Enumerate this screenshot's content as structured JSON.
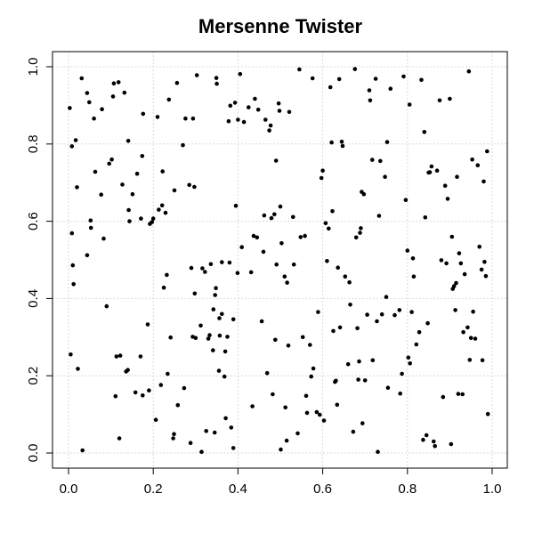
{
  "chart_data": {
    "type": "scatter",
    "title": "Mersenne Twister",
    "xlabel": "",
    "ylabel": "",
    "xlim": [
      0,
      1
    ],
    "ylim": [
      0,
      1
    ],
    "xticks": [
      "0.0",
      "0.2",
      "0.4",
      "0.6",
      "0.8",
      "1.0"
    ],
    "yticks": [
      "0.0",
      "0.2",
      "0.4",
      "0.6",
      "0.8",
      "1.0"
    ],
    "grid": true,
    "legend": "none",
    "series": [
      {
        "points": [
          [
            0.003,
            0.893
          ],
          [
            0.005,
            0.255
          ],
          [
            0.008,
            0.794
          ],
          [
            0.008,
            0.569
          ],
          [
            0.01,
            0.486
          ],
          [
            0.012,
            0.437
          ],
          [
            0.017,
            0.81
          ],
          [
            0.02,
            0.688
          ],
          [
            0.022,
            0.218
          ],
          [
            0.031,
            0.97
          ],
          [
            0.033,
            0.007
          ],
          [
            0.044,
            0.512
          ],
          [
            0.044,
            0.932
          ],
          [
            0.049,
            0.908
          ],
          [
            0.052,
            0.602
          ],
          [
            0.053,
            0.583
          ],
          [
            0.06,
            0.866
          ],
          [
            0.063,
            0.728
          ],
          [
            0.077,
            0.669
          ],
          [
            0.079,
            0.89
          ],
          [
            0.083,
            0.555
          ],
          [
            0.09,
            0.38
          ],
          [
            0.096,
            0.749
          ],
          [
            0.102,
            0.76
          ],
          [
            0.105,
            0.923
          ],
          [
            0.107,
            0.957
          ],
          [
            0.111,
            0.147
          ],
          [
            0.113,
            0.25
          ],
          [
            0.118,
            0.96
          ],
          [
            0.12,
            0.038
          ],
          [
            0.122,
            0.252
          ],
          [
            0.127,
            0.695
          ],
          [
            0.132,
            0.933
          ],
          [
            0.136,
            0.211
          ],
          [
            0.14,
            0.215
          ],
          [
            0.141,
            0.808
          ],
          [
            0.142,
            0.629
          ],
          [
            0.144,
            0.6
          ],
          [
            0.151,
            0.67
          ],
          [
            0.158,
            0.157
          ],
          [
            0.162,
            0.723
          ],
          [
            0.17,
            0.25
          ],
          [
            0.171,
            0.607
          ],
          [
            0.174,
            0.769
          ],
          [
            0.175,
            0.149
          ],
          [
            0.176,
            0.878
          ],
          [
            0.187,
            0.333
          ],
          [
            0.19,
            0.162
          ],
          [
            0.192,
            0.593
          ],
          [
            0.197,
            0.598
          ],
          [
            0.2,
            0.607
          ],
          [
            0.206,
            0.086
          ],
          [
            0.21,
            0.87
          ],
          [
            0.213,
            0.63
          ],
          [
            0.218,
            0.176
          ],
          [
            0.221,
            0.641
          ],
          [
            0.222,
            0.729
          ],
          [
            0.225,
            0.428
          ],
          [
            0.229,
            0.622
          ],
          [
            0.232,
            0.461
          ],
          [
            0.234,
            0.205
          ],
          [
            0.237,
            0.915
          ],
          [
            0.241,
            0.299
          ],
          [
            0.247,
            0.038
          ],
          [
            0.249,
            0.049
          ],
          [
            0.25,
            0.68
          ],
          [
            0.256,
            0.958
          ],
          [
            0.258,
            0.124
          ],
          [
            0.27,
            0.797
          ],
          [
            0.273,
            0.168
          ],
          [
            0.276,
            0.866
          ],
          [
            0.285,
            0.694
          ],
          [
            0.288,
            0.026
          ],
          [
            0.29,
            0.479
          ],
          [
            0.293,
            0.301
          ],
          [
            0.294,
            0.866
          ],
          [
            0.297,
            0.689
          ],
          [
            0.298,
            0.413
          ],
          [
            0.3,
            0.298
          ],
          [
            0.303,
            0.978
          ],
          [
            0.312,
            0.33
          ],
          [
            0.314,
            0.003
          ],
          [
            0.316,
            0.478
          ],
          [
            0.322,
            0.469
          ],
          [
            0.325,
            0.057
          ],
          [
            0.33,
            0.296
          ],
          [
            0.333,
            0.305
          ],
          [
            0.336,
            0.489
          ],
          [
            0.341,
            0.266
          ],
          [
            0.342,
            0.372
          ],
          [
            0.345,
            0.053
          ],
          [
            0.346,
            0.409
          ],
          [
            0.348,
            0.427
          ],
          [
            0.349,
            0.971
          ],
          [
            0.35,
            0.956
          ],
          [
            0.355,
            0.213
          ],
          [
            0.356,
            0.349
          ],
          [
            0.357,
            0.304
          ],
          [
            0.362,
            0.494
          ],
          [
            0.362,
            0.36
          ],
          [
            0.368,
            0.198
          ],
          [
            0.37,
            0.263
          ],
          [
            0.371,
            0.09
          ],
          [
            0.375,
            0.301
          ],
          [
            0.378,
            0.859
          ],
          [
            0.38,
            0.493
          ],
          [
            0.382,
            0.899
          ],
          [
            0.384,
            0.066
          ],
          [
            0.389,
            0.013
          ],
          [
            0.389,
            0.346
          ],
          [
            0.393,
            0.907
          ],
          [
            0.395,
            0.64
          ],
          [
            0.399,
            0.466
          ],
          [
            0.4,
            0.863
          ],
          [
            0.405,
            0.981
          ],
          [
            0.409,
            0.533
          ],
          [
            0.414,
            0.857
          ],
          [
            0.425,
            0.895
          ],
          [
            0.431,
            0.468
          ],
          [
            0.434,
            0.121
          ],
          [
            0.437,
            0.562
          ],
          [
            0.44,
            0.917
          ],
          [
            0.445,
            0.558
          ],
          [
            0.448,
            0.889
          ],
          [
            0.456,
            0.341
          ],
          [
            0.46,
            0.521
          ],
          [
            0.462,
            0.615
          ],
          [
            0.465,
            0.863
          ],
          [
            0.469,
            0.207
          ],
          [
            0.474,
            0.835
          ],
          [
            0.477,
            0.848
          ],
          [
            0.479,
            0.608
          ],
          [
            0.482,
            0.152
          ],
          [
            0.486,
            0.618
          ],
          [
            0.488,
            0.293
          ],
          [
            0.49,
            0.757
          ],
          [
            0.491,
            0.488
          ],
          [
            0.496,
            0.905
          ],
          [
            0.498,
            0.886
          ],
          [
            0.5,
            0.638
          ],
          [
            0.501,
            0.009
          ],
          [
            0.503,
            0.543
          ],
          [
            0.51,
            0.457
          ],
          [
            0.512,
            0.118
          ],
          [
            0.515,
            0.032
          ],
          [
            0.516,
            0.441
          ],
          [
            0.519,
            0.278
          ],
          [
            0.521,
            0.883
          ],
          [
            0.53,
            0.611
          ],
          [
            0.532,
            0.488
          ],
          [
            0.541,
            0.051
          ],
          [
            0.545,
            0.993
          ],
          [
            0.548,
            0.559
          ],
          [
            0.553,
            0.3
          ],
          [
            0.558,
            0.562
          ],
          [
            0.561,
            0.148
          ],
          [
            0.563,
            0.104
          ],
          [
            0.57,
            0.28
          ],
          [
            0.573,
            0.198
          ],
          [
            0.576,
            0.97
          ],
          [
            0.578,
            0.219
          ],
          [
            0.586,
            0.106
          ],
          [
            0.589,
            0.365
          ],
          [
            0.593,
            0.099
          ],
          [
            0.597,
            0.712
          ],
          [
            0.6,
            0.731
          ],
          [
            0.603,
            0.084
          ],
          [
            0.607,
            0.595
          ],
          [
            0.61,
            0.497
          ],
          [
            0.614,
            0.581
          ],
          [
            0.618,
            0.947
          ],
          [
            0.621,
            0.804
          ],
          [
            0.623,
            0.626
          ],
          [
            0.625,
            0.316
          ],
          [
            0.629,
            0.184
          ],
          [
            0.631,
            0.187
          ],
          [
            0.634,
            0.125
          ],
          [
            0.636,
            0.48
          ],
          [
            0.639,
            0.968
          ],
          [
            0.641,
            0.325
          ],
          [
            0.645,
            0.806
          ],
          [
            0.647,
            0.795
          ],
          [
            0.653,
            0.457
          ],
          [
            0.66,
            0.23
          ],
          [
            0.663,
            0.442
          ],
          [
            0.665,
            0.384
          ],
          [
            0.672,
            0.055
          ],
          [
            0.676,
            0.994
          ],
          [
            0.679,
            0.558
          ],
          [
            0.682,
            0.323
          ],
          [
            0.684,
            0.19
          ],
          [
            0.686,
            0.237
          ],
          [
            0.688,
            0.57
          ],
          [
            0.69,
            0.582
          ],
          [
            0.692,
            0.676
          ],
          [
            0.694,
            0.077
          ],
          [
            0.697,
            0.67
          ],
          [
            0.7,
            0.188
          ],
          [
            0.705,
            0.358
          ],
          [
            0.71,
            0.939
          ],
          [
            0.712,
            0.913
          ],
          [
            0.717,
            0.759
          ],
          [
            0.718,
            0.24
          ],
          [
            0.725,
            0.969
          ],
          [
            0.728,
            0.341
          ],
          [
            0.73,
            0.003
          ],
          [
            0.733,
            0.614
          ],
          [
            0.736,
            0.756
          ],
          [
            0.74,
            0.359
          ],
          [
            0.747,
            0.715
          ],
          [
            0.75,
            0.404
          ],
          [
            0.752,
            0.805
          ],
          [
            0.754,
            0.169
          ],
          [
            0.76,
            0.943
          ],
          [
            0.77,
            0.357
          ],
          [
            0.781,
            0.37
          ],
          [
            0.783,
            0.154
          ],
          [
            0.787,
            0.205
          ],
          [
            0.791,
            0.975
          ],
          [
            0.796,
            0.655
          ],
          [
            0.8,
            0.524
          ],
          [
            0.802,
            0.247
          ],
          [
            0.805,
            0.902
          ],
          [
            0.806,
            0.232
          ],
          [
            0.81,
            0.365
          ],
          [
            0.813,
            0.504
          ],
          [
            0.815,
            0.457
          ],
          [
            0.821,
            0.281
          ],
          [
            0.828,
            0.313
          ],
          [
            0.833,
            0.966
          ],
          [
            0.837,
            0.034
          ],
          [
            0.84,
            0.831
          ],
          [
            0.842,
            0.61
          ],
          [
            0.845,
            0.046
          ],
          [
            0.848,
            0.336
          ],
          [
            0.85,
            0.726
          ],
          [
            0.853,
            0.727
          ],
          [
            0.857,
            0.742
          ],
          [
            0.862,
            0.03
          ],
          [
            0.865,
            0.018
          ],
          [
            0.87,
            0.731
          ],
          [
            0.876,
            0.913
          ],
          [
            0.88,
            0.499
          ],
          [
            0.884,
            0.145
          ],
          [
            0.889,
            0.692
          ],
          [
            0.892,
            0.491
          ],
          [
            0.895,
            0.658
          ],
          [
            0.9,
            0.917
          ],
          [
            0.903,
            0.023
          ],
          [
            0.905,
            0.56
          ],
          [
            0.907,
            0.425
          ],
          [
            0.91,
            0.432
          ],
          [
            0.913,
            0.37
          ],
          [
            0.915,
            0.44
          ],
          [
            0.917,
            0.715
          ],
          [
            0.92,
            0.153
          ],
          [
            0.922,
            0.517
          ],
          [
            0.926,
            0.491
          ],
          [
            0.93,
            0.152
          ],
          [
            0.932,
            0.313
          ],
          [
            0.935,
            0.463
          ],
          [
            0.942,
            0.325
          ],
          [
            0.945,
            0.988
          ],
          [
            0.947,
            0.241
          ],
          [
            0.95,
            0.298
          ],
          [
            0.953,
            0.76
          ],
          [
            0.955,
            0.366
          ],
          [
            0.96,
            0.296
          ],
          [
            0.966,
            0.745
          ],
          [
            0.97,
            0.534
          ],
          [
            0.975,
            0.475
          ],
          [
            0.977,
            0.24
          ],
          [
            0.98,
            0.703
          ],
          [
            0.982,
            0.495
          ],
          [
            0.985,
            0.458
          ],
          [
            0.988,
            0.781
          ],
          [
            0.99,
            0.101
          ]
        ]
      }
    ]
  }
}
